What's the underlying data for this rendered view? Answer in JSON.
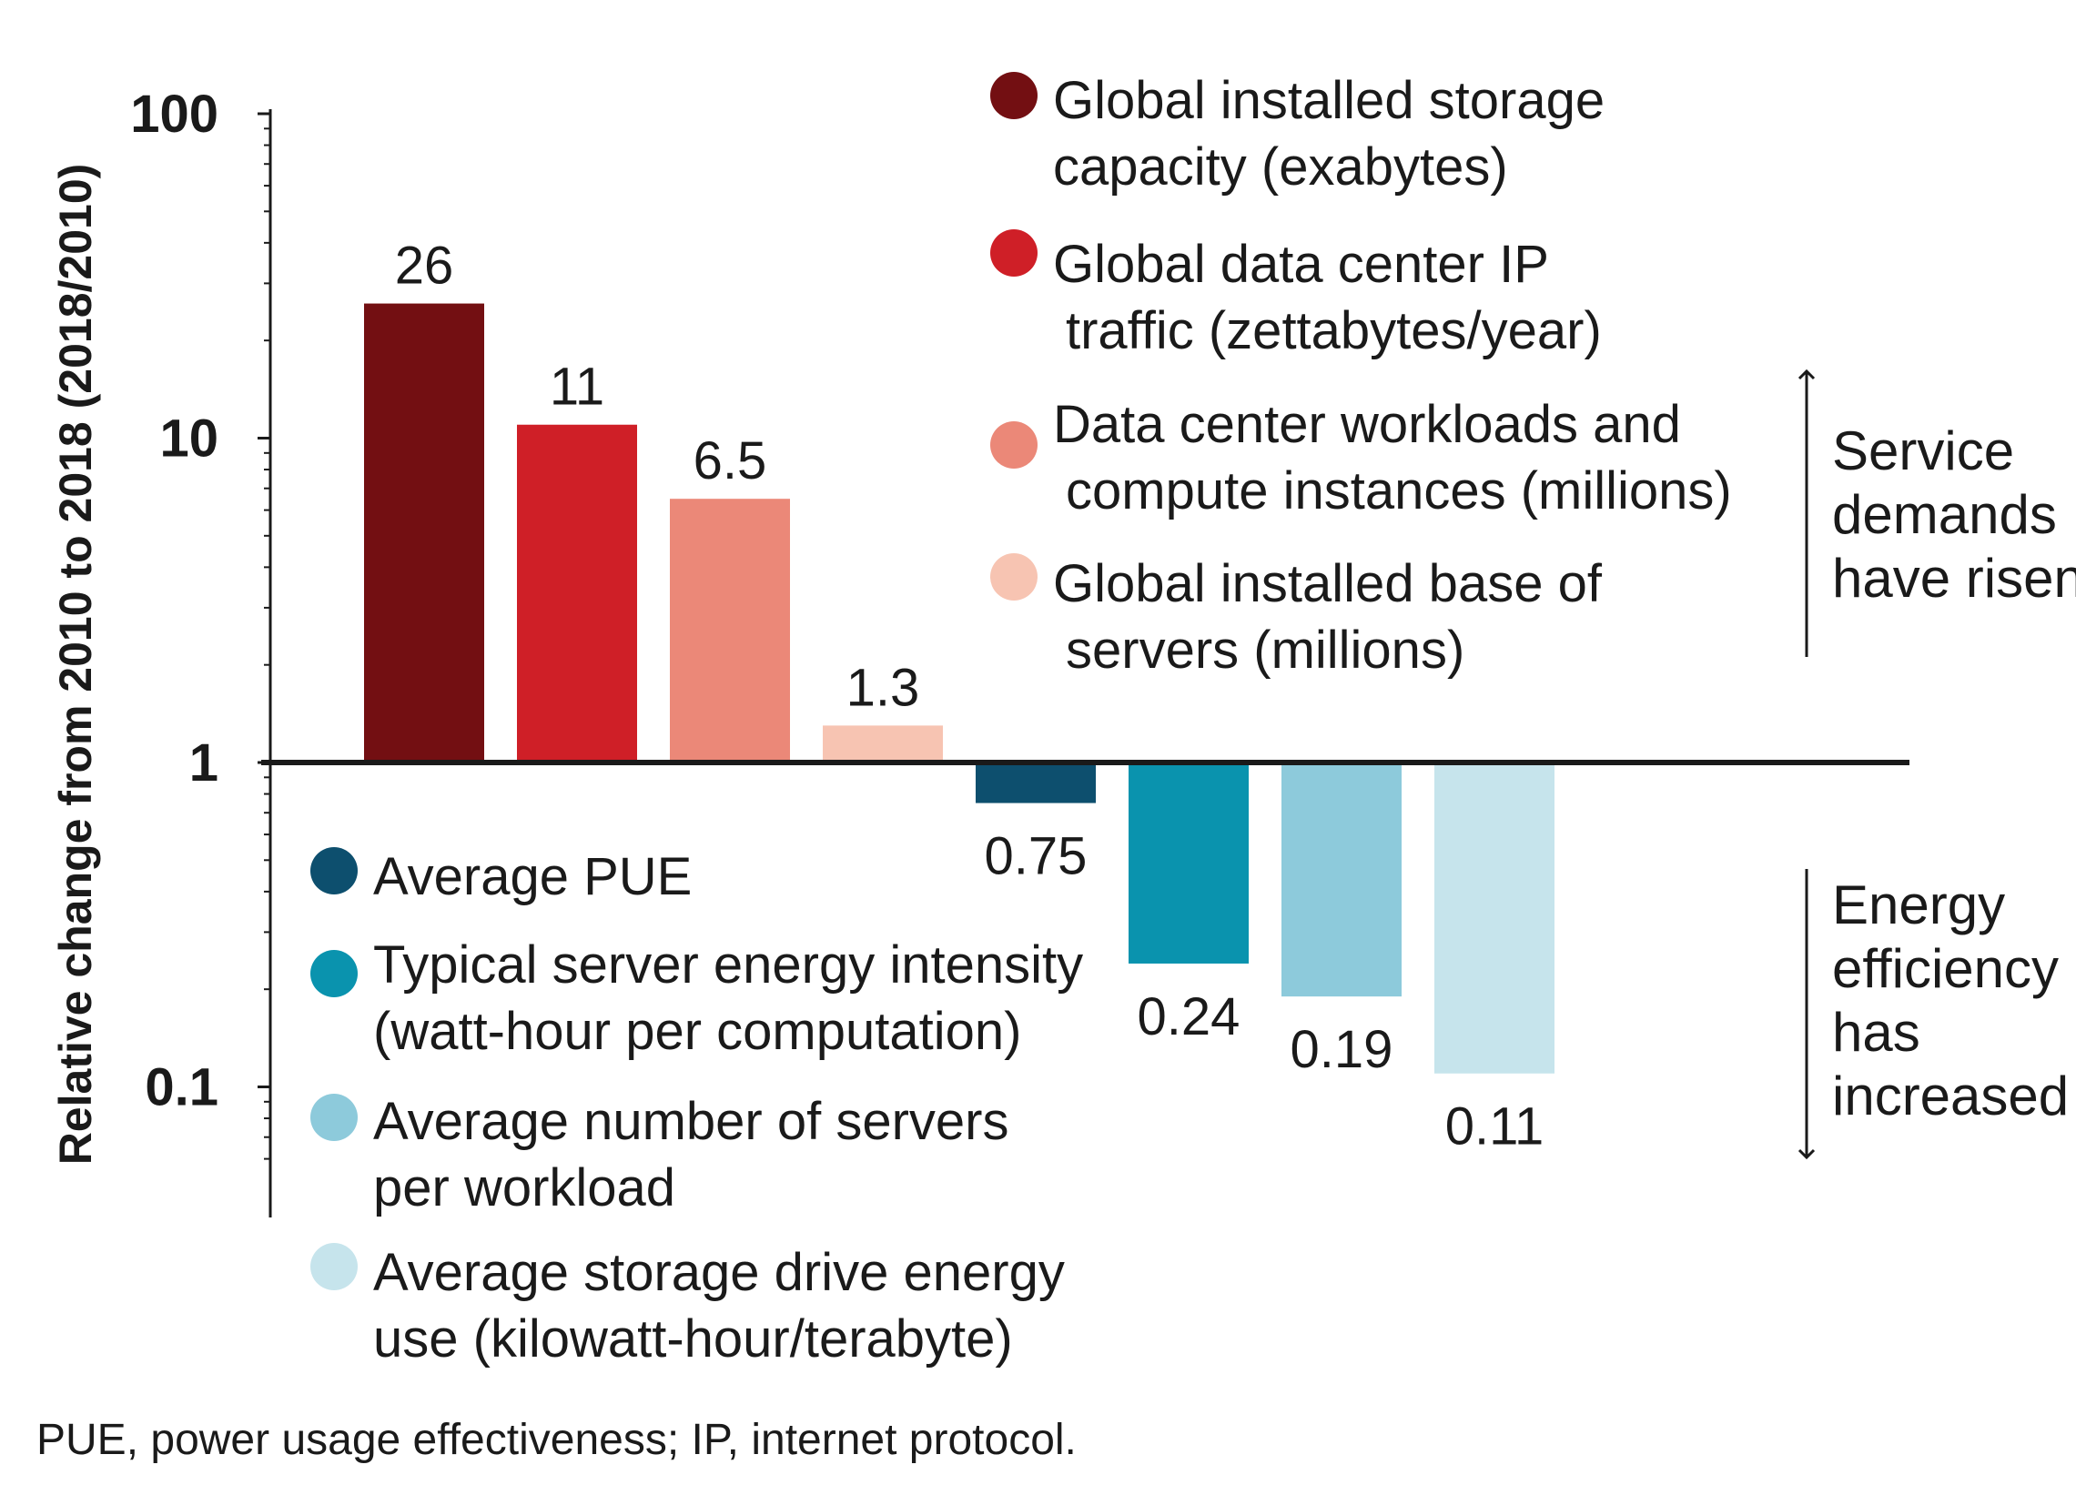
{
  "chart_data": {
    "type": "bar",
    "yscale": "log",
    "ylim": [
      0.05,
      100
    ],
    "ylabel": "Relative change from 2010 to 2018 (2018/2010)",
    "yticks": [
      {
        "value": 100,
        "label": "100"
      },
      {
        "value": 10,
        "label": "10"
      },
      {
        "value": 1,
        "label": "1"
      },
      {
        "value": 0.1,
        "label": "0.1"
      }
    ],
    "series": [
      {
        "key": "storage-capacity",
        "value": 26,
        "label": "26",
        "color": "#730f12",
        "legend": [
          "Global installed storage",
          "capacity (exabytes)"
        ]
      },
      {
        "key": "ip-traffic",
        "value": 11,
        "label": "11",
        "color": "#cf1f27",
        "legend": [
          "Global data center IP",
          "traffic (zettabytes/year)"
        ]
      },
      {
        "key": "workloads",
        "value": 6.5,
        "label": "6.5",
        "color": "#eb8878",
        "legend": [
          "Data center workloads and",
          "compute instances (millions)"
        ]
      },
      {
        "key": "servers",
        "value": 1.3,
        "label": "1.3",
        "color": "#f7c4b2",
        "legend": [
          "Global installed base of",
          "servers (millions)"
        ]
      },
      {
        "key": "pue",
        "value": 0.75,
        "label": "0.75",
        "color": "#0d4f6e",
        "legend": [
          "Average PUE"
        ]
      },
      {
        "key": "server-energy-intensity",
        "value": 0.24,
        "label": "0.24",
        "color": "#0a93ae",
        "legend": [
          "Typical server energy intensity",
          "(watt-hour per computation)"
        ]
      },
      {
        "key": "servers-per-workload",
        "value": 0.19,
        "label": "0.19",
        "color": "#8dcadb",
        "legend": [
          "Average number of servers",
          "per workload"
        ]
      },
      {
        "key": "storage-drive-energy",
        "value": 0.11,
        "label": "0.11",
        "color": "#c6e4ec",
        "legend": [
          "Average storage drive energy",
          "use (kilowatt-hour/terabyte)"
        ]
      }
    ],
    "annotations": {
      "up": [
        "Service",
        "demands",
        "have risen"
      ],
      "down": [
        "Energy",
        "efficiency",
        "has",
        "increased"
      ]
    }
  },
  "footnote": "PUE, power usage effectiveness; IP, internet protocol."
}
